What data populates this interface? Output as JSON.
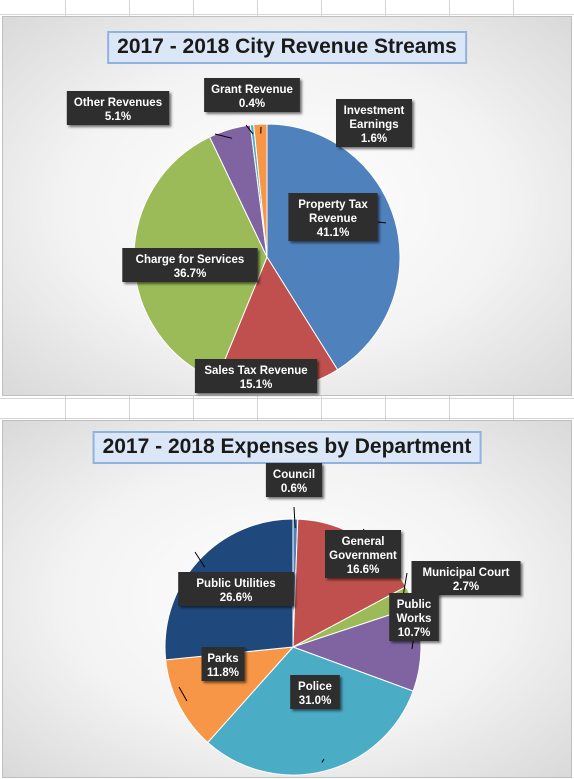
{
  "colors": {
    "blue": "#4f81bd",
    "red": "#c0504d",
    "green": "#9bbb59",
    "purple": "#8064a2",
    "aqua": "#4bacc6",
    "orange": "#f79646",
    "navy": "#1f497d",
    "label_bg": "#2e2e2e"
  },
  "chart_data": [
    {
      "type": "pie",
      "title": "2017 - 2018 City Revenue Streams",
      "slices": [
        {
          "label": "Property Tax Revenue",
          "label_lines": [
            "Property Tax",
            "Revenue"
          ],
          "value": 41.1,
          "value_label": "41.1%",
          "color": "blue"
        },
        {
          "label": "Sales Tax Revenue",
          "label_lines": [
            "Sales Tax Revenue"
          ],
          "value": 15.1,
          "value_label": "15.1%",
          "color": "red"
        },
        {
          "label": "Charge for Services",
          "label_lines": [
            "Charge for Services"
          ],
          "value": 36.7,
          "value_label": "36.7%",
          "color": "green"
        },
        {
          "label": "Other Revenues",
          "label_lines": [
            "Other Revenues"
          ],
          "value": 5.1,
          "value_label": "5.1%",
          "color": "purple"
        },
        {
          "label": "Grant Revenue",
          "label_lines": [
            "Grant Revenue"
          ],
          "value": 0.4,
          "value_label": "0.4%",
          "color": "aqua"
        },
        {
          "label": "Investment Earnings",
          "label_lines": [
            "Investment",
            "Earnings"
          ],
          "value": 1.6,
          "value_label": "1.6%",
          "color": "orange"
        }
      ]
    },
    {
      "type": "pie",
      "title": "2017 - 2018 Expenses by Department",
      "slices": [
        {
          "label": "Council",
          "label_lines": [
            "Council"
          ],
          "value": 0.6,
          "value_label": "0.6%",
          "color": "blue"
        },
        {
          "label": "General Government",
          "label_lines": [
            "General",
            "Government"
          ],
          "value": 16.6,
          "value_label": "16.6%",
          "color": "red"
        },
        {
          "label": "Municipal Court",
          "label_lines": [
            "Municipal Court"
          ],
          "value": 2.7,
          "value_label": "2.7%",
          "color": "green"
        },
        {
          "label": "Public Works",
          "label_lines": [
            "Public",
            "Works"
          ],
          "value": 10.7,
          "value_label": "10.7%",
          "color": "purple"
        },
        {
          "label": "Police",
          "label_lines": [
            "Police"
          ],
          "value": 31.0,
          "value_label": "31.0%",
          "color": "aqua"
        },
        {
          "label": "Parks",
          "label_lines": [
            "Parks"
          ],
          "value": 11.8,
          "value_label": "11.8%",
          "color": "orange"
        },
        {
          "label": "Public Utilities",
          "label_lines": [
            "Public Utilities"
          ],
          "value": 26.6,
          "value_label": "26.6%",
          "color": "navy"
        }
      ]
    }
  ]
}
